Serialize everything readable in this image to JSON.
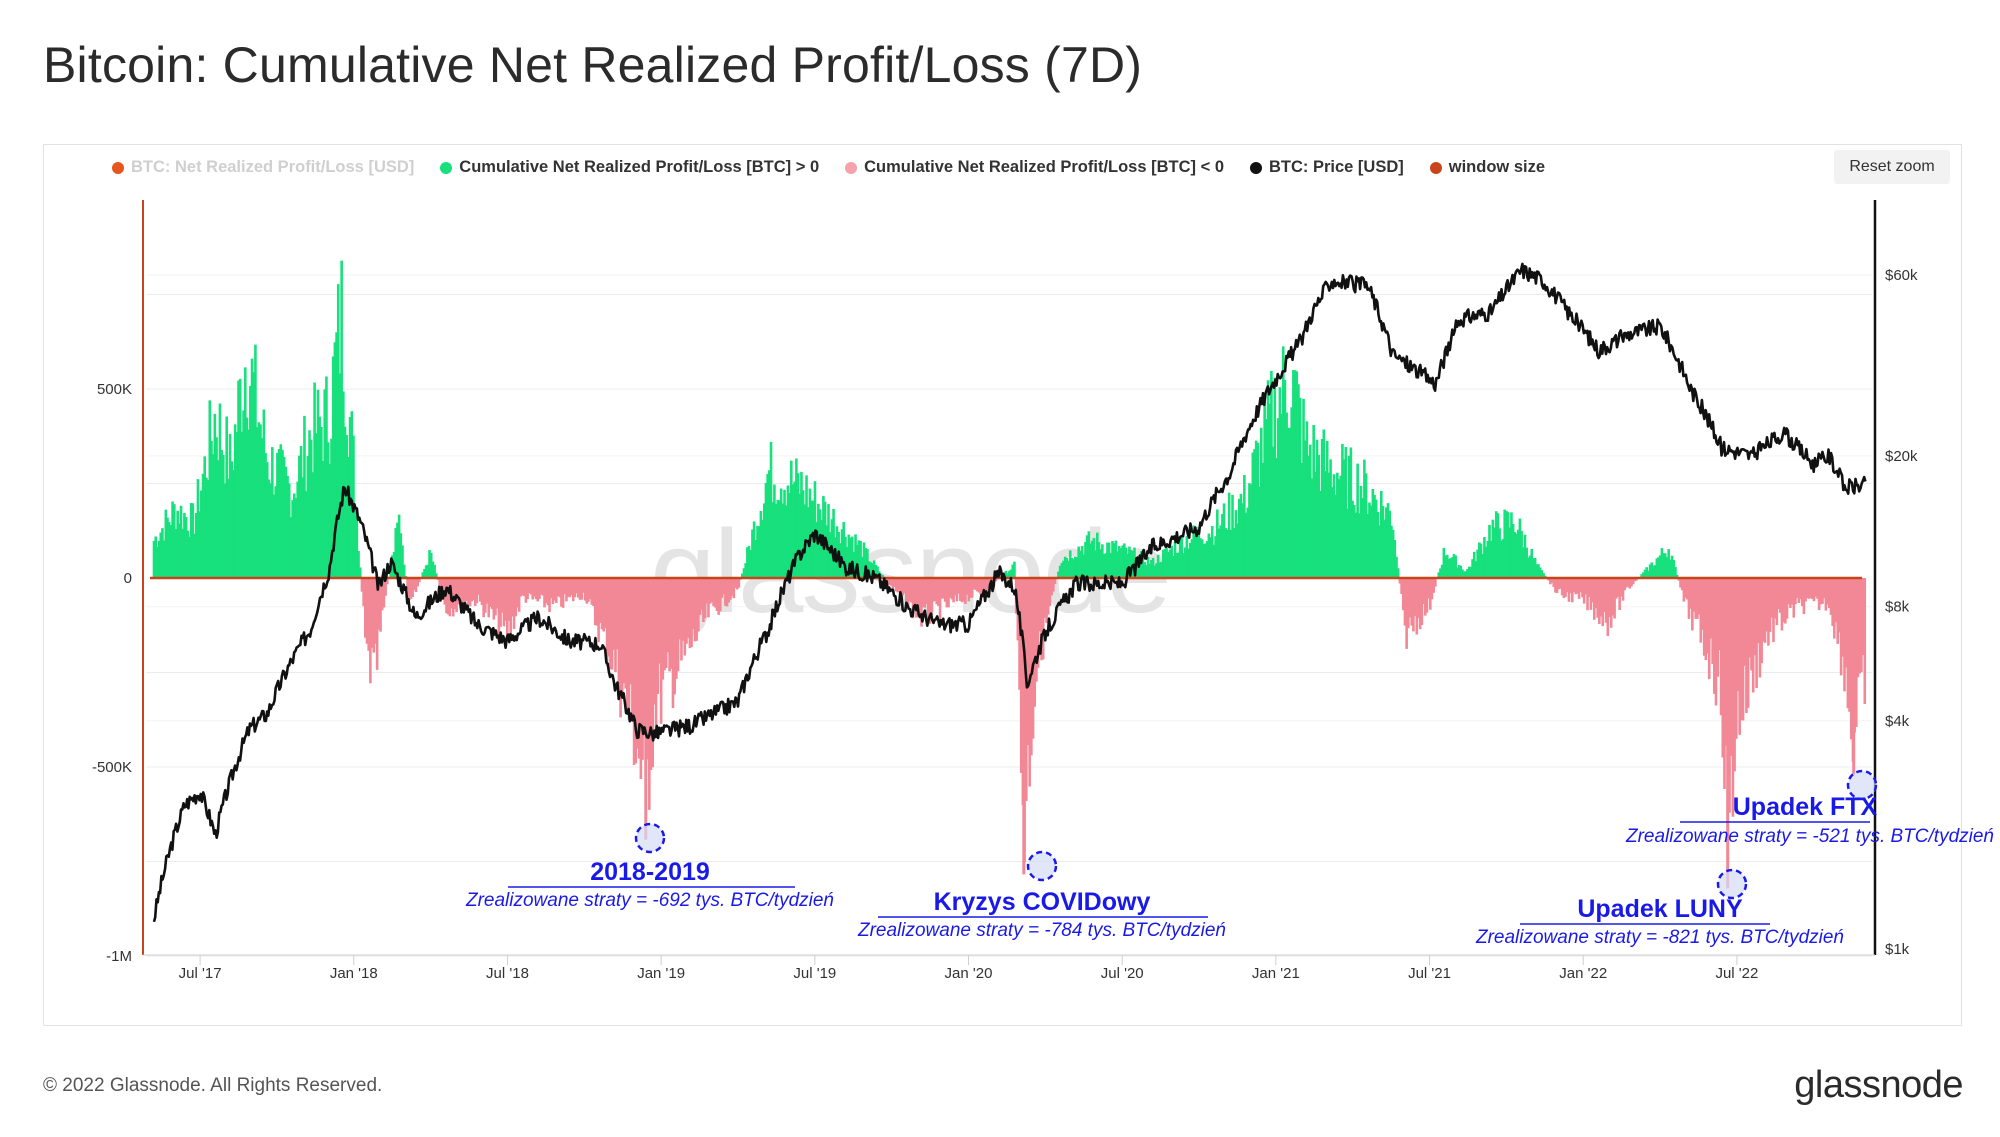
{
  "title": "Bitcoin: Cumulative Net Realized Profit/Loss (7D)",
  "reset_zoom": "Reset zoom",
  "legend": [
    {
      "label": "BTC: Net Realized Profit/Loss [USD]",
      "color": "#e8541e",
      "hidden": true
    },
    {
      "label": "Cumulative Net Realized Profit/Loss [BTC] > 0",
      "color": "#17e07c",
      "hidden": false
    },
    {
      "label": "Cumulative Net Realized Profit/Loss [BTC] < 0",
      "color": "#f7a1ac",
      "hidden": false
    },
    {
      "label": "BTC: Price [USD]",
      "color": "#111111",
      "hidden": false
    },
    {
      "label": "window size",
      "color": "#c8441a",
      "hidden": false
    }
  ],
  "footer": {
    "copyright": "© 2022 Glassnode. All Rights Reserved.",
    "logo": "glassnode"
  },
  "watermark": "glassnode",
  "colors": {
    "positive": "#17e07c",
    "negative": "#f28896",
    "price": "#111111",
    "zero_line": "#c8441a",
    "annotation": "#1a1ae8"
  },
  "chart_data": {
    "type": "bar",
    "title": "Bitcoin: Cumulative Net Realized Profit/Loss (7D)",
    "x_ticks": [
      "Jul '17",
      "Jan '18",
      "Jul '18",
      "Jan '19",
      "Jul '19",
      "Jan '20",
      "Jul '20",
      "Jan '21",
      "Jul '21",
      "Jan '22",
      "Jul '22"
    ],
    "x_range": [
      2017.35,
      2022.92
    ],
    "left_axis": {
      "label": "Cumulative Net Realized Profit/Loss [BTC]",
      "ticks": [
        "500K",
        "0",
        "-500K",
        "-1M"
      ],
      "tick_values": [
        500000,
        0,
        -500000,
        -1000000
      ],
      "ylim": [
        -1000000,
        1000000
      ]
    },
    "right_axis": {
      "label": "BTC: Price [USD]",
      "scale": "log",
      "ticks": [
        "$60k",
        "$20k",
        "$8k",
        "$4k",
        "$1k"
      ],
      "tick_values": [
        60000,
        20000,
        8000,
        4000,
        1000
      ],
      "ylim": [
        1000,
        100000
      ]
    },
    "net_realized_btc_keypoints": [
      [
        2017.35,
        120000
      ],
      [
        2017.42,
        220000
      ],
      [
        2017.48,
        180000
      ],
      [
        2017.55,
        520000
      ],
      [
        2017.6,
        360000
      ],
      [
        2017.65,
        720000
      ],
      [
        2017.72,
        380000
      ],
      [
        2017.8,
        280000
      ],
      [
        2017.86,
        460000
      ],
      [
        2017.92,
        520000
      ],
      [
        2017.96,
        840000
      ],
      [
        2018.0,
        360000
      ],
      [
        2018.04,
        -250000
      ],
      [
        2018.07,
        -320000
      ],
      [
        2018.1,
        -80000
      ],
      [
        2018.15,
        200000
      ],
      [
        2018.18,
        -100000
      ],
      [
        2018.25,
        80000
      ],
      [
        2018.3,
        -100000
      ],
      [
        2018.4,
        -70000
      ],
      [
        2018.5,
        -180000
      ],
      [
        2018.55,
        -60000
      ],
      [
        2018.65,
        -90000
      ],
      [
        2018.75,
        -50000
      ],
      [
        2018.85,
        -280000
      ],
      [
        2018.92,
        -520000
      ],
      [
        2018.95,
        -692000
      ],
      [
        2018.98,
        -400000
      ],
      [
        2019.05,
        -300000
      ],
      [
        2019.15,
        -120000
      ],
      [
        2019.25,
        -40000
      ],
      [
        2019.35,
        340000
      ],
      [
        2019.45,
        300000
      ],
      [
        2019.55,
        200000
      ],
      [
        2019.65,
        100000
      ],
      [
        2019.75,
        -30000
      ],
      [
        2019.85,
        -130000
      ],
      [
        2019.95,
        -80000
      ],
      [
        2020.05,
        -40000
      ],
      [
        2020.15,
        40000
      ],
      [
        2020.18,
        -784000
      ],
      [
        2020.22,
        -300000
      ],
      [
        2020.3,
        60000
      ],
      [
        2020.4,
        120000
      ],
      [
        2020.5,
        90000
      ],
      [
        2020.6,
        50000
      ],
      [
        2020.7,
        120000
      ],
      [
        2020.8,
        160000
      ],
      [
        2020.9,
        260000
      ],
      [
        2021.0,
        560000
      ],
      [
        2021.05,
        640000
      ],
      [
        2021.1,
        420000
      ],
      [
        2021.18,
        350000
      ],
      [
        2021.28,
        300000
      ],
      [
        2021.38,
        200000
      ],
      [
        2021.42,
        -180000
      ],
      [
        2021.5,
        -90000
      ],
      [
        2021.55,
        90000
      ],
      [
        2021.62,
        20000
      ],
      [
        2021.7,
        160000
      ],
      [
        2021.78,
        180000
      ],
      [
        2021.85,
        40000
      ],
      [
        2021.92,
        -50000
      ],
      [
        2022.0,
        -70000
      ],
      [
        2022.08,
        -140000
      ],
      [
        2022.15,
        -30000
      ],
      [
        2022.22,
        40000
      ],
      [
        2022.28,
        100000
      ],
      [
        2022.33,
        -80000
      ],
      [
        2022.4,
        -220000
      ],
      [
        2022.45,
        -360000
      ],
      [
        2022.47,
        -821000
      ],
      [
        2022.5,
        -450000
      ],
      [
        2022.6,
        -180000
      ],
      [
        2022.7,
        -90000
      ],
      [
        2022.8,
        -80000
      ],
      [
        2022.85,
        -280000
      ],
      [
        2022.88,
        -521000
      ],
      [
        2022.92,
        -300000
      ]
    ],
    "btc_price_usd_keypoints": [
      [
        2017.35,
        1200
      ],
      [
        2017.45,
        2400
      ],
      [
        2017.5,
        2600
      ],
      [
        2017.55,
        2000
      ],
      [
        2017.6,
        2800
      ],
      [
        2017.66,
        3800
      ],
      [
        2017.72,
        4200
      ],
      [
        2017.8,
        5800
      ],
      [
        2017.86,
        7000
      ],
      [
        2017.92,
        10000
      ],
      [
        2017.97,
        16500
      ],
      [
        2018.02,
        13500
      ],
      [
        2018.08,
        9000
      ],
      [
        2018.12,
        10500
      ],
      [
        2018.2,
        7500
      ],
      [
        2018.3,
        9000
      ],
      [
        2018.4,
        7200
      ],
      [
        2018.5,
        6500
      ],
      [
        2018.6,
        7500
      ],
      [
        2018.7,
        6500
      ],
      [
        2018.8,
        6400
      ],
      [
        2018.85,
        5000
      ],
      [
        2018.92,
        3800
      ],
      [
        2018.98,
        3700
      ],
      [
        2019.1,
        3900
      ],
      [
        2019.25,
        4500
      ],
      [
        2019.35,
        7000
      ],
      [
        2019.45,
        11000
      ],
      [
        2019.5,
        12500
      ],
      [
        2019.6,
        10200
      ],
      [
        2019.7,
        9500
      ],
      [
        2019.8,
        8000
      ],
      [
        2019.9,
        7200
      ],
      [
        2020.0,
        7200
      ],
      [
        2020.1,
        9800
      ],
      [
        2020.15,
        9000
      ],
      [
        2020.19,
        5000
      ],
      [
        2020.25,
        6800
      ],
      [
        2020.35,
        9200
      ],
      [
        2020.5,
        9200
      ],
      [
        2020.6,
        11500
      ],
      [
        2020.75,
        13000
      ],
      [
        2020.85,
        18000
      ],
      [
        2021.0,
        32000
      ],
      [
        2021.08,
        40000
      ],
      [
        2021.12,
        48000
      ],
      [
        2021.18,
        58000
      ],
      [
        2021.3,
        56000
      ],
      [
        2021.38,
        37000
      ],
      [
        2021.45,
        34000
      ],
      [
        2021.52,
        31000
      ],
      [
        2021.6,
        46000
      ],
      [
        2021.7,
        48000
      ],
      [
        2021.8,
        62000
      ],
      [
        2021.87,
        58000
      ],
      [
        2021.95,
        48000
      ],
      [
        2022.05,
        38000
      ],
      [
        2022.15,
        42000
      ],
      [
        2022.25,
        44000
      ],
      [
        2022.35,
        30000
      ],
      [
        2022.45,
        21000
      ],
      [
        2022.55,
        20000
      ],
      [
        2022.65,
        23000
      ],
      [
        2022.75,
        19000
      ],
      [
        2022.8,
        20000
      ],
      [
        2022.85,
        16500
      ],
      [
        2022.92,
        16800
      ]
    ],
    "annotations": [
      {
        "title": "2018-2019",
        "subtitle": "Zrealizowane straty = -692 tys. BTC/tydzień",
        "x": 2018.95,
        "y": -692000
      },
      {
        "title": "Kryzys COVIDowy",
        "subtitle": "Zrealizowane straty = -784 tys. BTC/tydzień",
        "x": 2020.18,
        "y": -784000
      },
      {
        "title": "Upadek LUNY",
        "subtitle": "Zrealizowane straty = -821 tys. BTC/tydzień",
        "x": 2022.47,
        "y": -821000
      },
      {
        "title": "Upadek FTX",
        "subtitle": "Zrealizowane straty = -521 tys. BTC/tydzień",
        "x": 2022.88,
        "y": -521000
      }
    ]
  }
}
